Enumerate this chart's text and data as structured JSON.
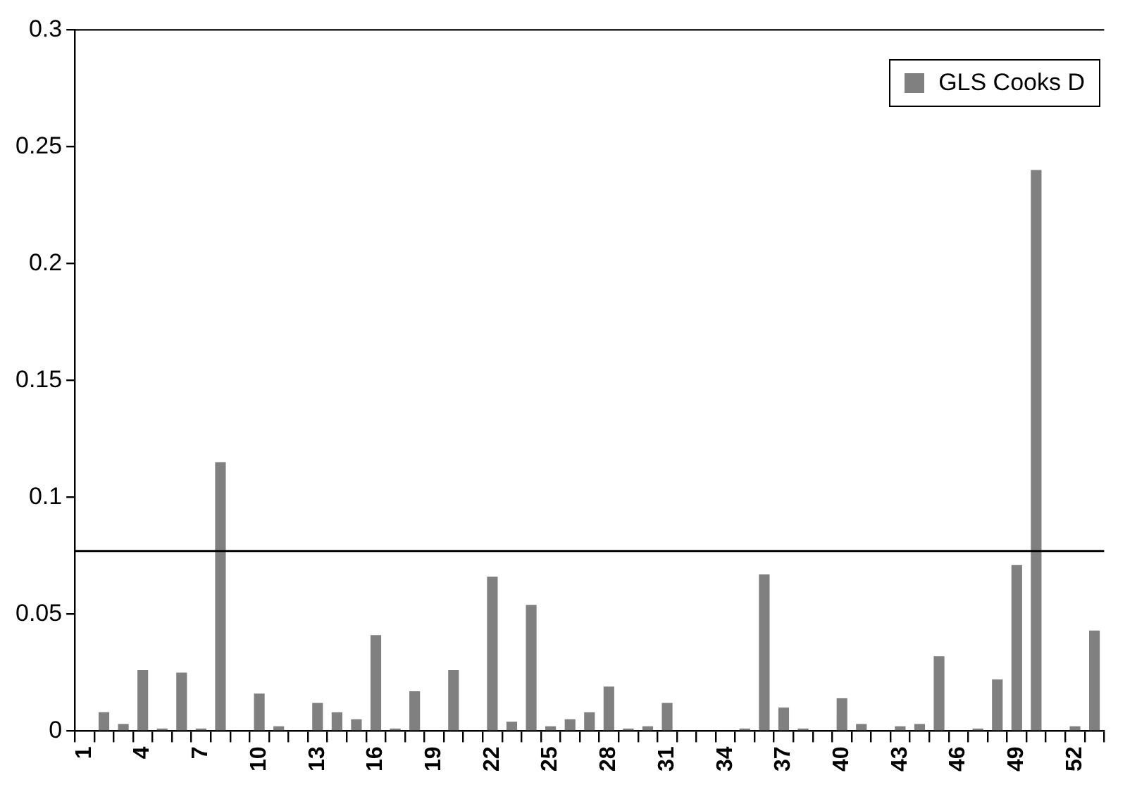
{
  "chart_data": {
    "type": "bar",
    "categories": [
      "1",
      null,
      null,
      "4",
      null,
      null,
      "7",
      null,
      null,
      "10",
      null,
      null,
      "13",
      null,
      null,
      "16",
      null,
      null,
      "19",
      null,
      null,
      "22",
      null,
      null,
      "25",
      null,
      null,
      "28",
      null,
      null,
      "31",
      null,
      null,
      "34",
      null,
      null,
      "37",
      null,
      null,
      "40",
      null,
      null,
      "43",
      null,
      null,
      "46",
      null,
      null,
      "49",
      null,
      null,
      "52",
      null
    ],
    "series": [
      {
        "name": "GLS Cooks D",
        "color": "#808080",
        "values": [
          0,
          0.008,
          0.003,
          0.026,
          0.001,
          0.025,
          0.001,
          0.115,
          0,
          0.016,
          0.002,
          0,
          0.012,
          0.008,
          0.005,
          0.041,
          0.001,
          0.017,
          0,
          0.026,
          0,
          0.066,
          0.004,
          0.054,
          0.002,
          0.005,
          0.008,
          0.019,
          0.001,
          0.002,
          0.012,
          0,
          0,
          0,
          0.001,
          0.067,
          0.01,
          0.001,
          0,
          0.014,
          0.003,
          0,
          0.002,
          0.003,
          0.032,
          0,
          0.001,
          0.022,
          0.071,
          0.24,
          0,
          0.002,
          0.043
        ]
      }
    ],
    "ylim": [
      0,
      0.3
    ],
    "yticks": [
      0,
      0.05,
      0.1,
      0.15,
      0.2,
      0.25,
      0.3
    ],
    "ref_lines": [
      {
        "axis": "y",
        "value": 0.077,
        "color": "#000000"
      }
    ],
    "grid": false,
    "legend": "top right"
  }
}
